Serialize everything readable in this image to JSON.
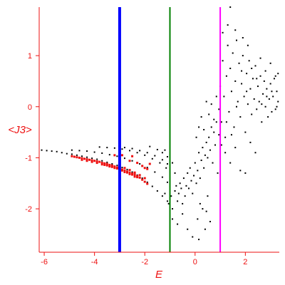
{
  "chart_data": {
    "type": "scatter",
    "xlabel": "E",
    "ylabel": "<J3>",
    "xlim": [
      -6.2,
      3.35
    ],
    "ylim": [
      -2.85,
      1.95
    ],
    "x_ticks": [
      -6,
      -4,
      -2,
      0,
      2
    ],
    "x_tick_labels": [
      "-6",
      "-4",
      "-2",
      "0",
      "2"
    ],
    "y_ticks": [
      1,
      0,
      -1,
      -2
    ],
    "y_tick_labels": [
      "1",
      "0",
      "-1",
      "-2"
    ],
    "grid": false,
    "axis_color": "#ee1111",
    "vertical_lines": [
      {
        "x": -3.0,
        "color": "#0000ff",
        "width": "thick"
      },
      {
        "x": -1.0,
        "color": "#008000",
        "width": "medium"
      },
      {
        "x": 1.0,
        "color": "#ff00ff",
        "width": "medium"
      }
    ],
    "series": [
      {
        "color": "#000000",
        "points": [
          [
            -6.1,
            -0.85
          ],
          [
            -5.9,
            -0.86
          ],
          [
            -5.7,
            -0.87
          ],
          [
            -5.5,
            -0.88
          ],
          [
            -5.3,
            -0.9
          ],
          [
            -5.1,
            -0.92
          ],
          [
            -4.9,
            -0.93
          ],
          [
            -4.7,
            -0.95
          ],
          [
            -4.5,
            -0.97
          ],
          [
            -4.3,
            -0.99
          ],
          [
            -4.1,
            -1.01
          ],
          [
            -3.9,
            -1.03
          ],
          [
            -3.7,
            -1.06
          ],
          [
            -3.5,
            -1.09
          ],
          [
            -3.3,
            -1.12
          ],
          [
            -3.1,
            -1.15
          ],
          [
            -2.9,
            -1.19
          ],
          [
            -2.7,
            -1.23
          ],
          [
            -2.5,
            -1.28
          ],
          [
            -2.3,
            -1.34
          ],
          [
            -2.1,
            -1.4
          ],
          [
            -1.9,
            -1.48
          ],
          [
            -1.7,
            -1.56
          ],
          [
            -1.5,
            -1.65
          ],
          [
            -1.3,
            -1.75
          ],
          [
            -1.1,
            -1.85
          ],
          [
            -4.9,
            -0.85
          ],
          [
            -4.6,
            -0.86
          ],
          [
            -4.3,
            -0.87
          ],
          [
            -4.0,
            -0.89
          ],
          [
            -3.7,
            -0.91
          ],
          [
            -3.4,
            -0.94
          ],
          [
            -3.1,
            -0.97
          ],
          [
            -2.8,
            -1.01
          ],
          [
            -2.5,
            -1.06
          ],
          [
            -2.2,
            -1.12
          ],
          [
            -1.9,
            -1.19
          ],
          [
            -1.6,
            -1.28
          ],
          [
            -1.3,
            -1.38
          ],
          [
            -1.1,
            -1.48
          ],
          [
            -3.8,
            -0.79
          ],
          [
            -3.5,
            -0.8
          ],
          [
            -3.2,
            -0.81
          ],
          [
            -2.9,
            -0.83
          ],
          [
            -2.6,
            -0.86
          ],
          [
            -2.3,
            -0.9
          ],
          [
            -2.0,
            -0.95
          ],
          [
            -1.7,
            -1.02
          ],
          [
            -1.4,
            -1.1
          ],
          [
            -1.15,
            -1.2
          ],
          [
            -2.8,
            -0.8
          ],
          [
            -2.5,
            -0.82
          ],
          [
            -2.2,
            -0.86
          ],
          [
            -1.9,
            -0.9
          ],
          [
            -1.6,
            -0.96
          ],
          [
            -1.3,
            -1.04
          ],
          [
            -1.1,
            -1.12
          ],
          [
            -1.8,
            -0.78
          ],
          [
            -1.5,
            -0.84
          ],
          [
            -1.3,
            -0.9
          ],
          [
            -1.1,
            -0.98
          ],
          [
            -1.2,
            -0.85
          ],
          [
            -0.9,
            -1.1
          ],
          [
            -0.8,
            -1.3
          ],
          [
            -1.2,
            -1.7
          ],
          [
            -1.05,
            -1.9
          ],
          [
            -0.95,
            -1.75
          ],
          [
            -0.9,
            -2.0
          ],
          [
            -0.8,
            -1.65
          ],
          [
            -0.75,
            -1.55
          ],
          [
            -0.7,
            -1.85
          ],
          [
            -0.65,
            -1.7
          ],
          [
            -0.6,
            -1.5
          ],
          [
            -0.55,
            -1.6
          ],
          [
            -0.5,
            -1.9
          ],
          [
            -0.45,
            -1.4
          ],
          [
            -0.4,
            -1.75
          ],
          [
            -0.35,
            -1.55
          ],
          [
            -0.3,
            -1.3
          ],
          [
            -0.25,
            -1.6
          ],
          [
            -0.2,
            -1.2
          ],
          [
            -0.15,
            -1.45
          ],
          [
            -0.1,
            -1.7
          ],
          [
            -0.05,
            -1.35
          ],
          [
            0.0,
            -1.1
          ],
          [
            0.05,
            -1.5
          ],
          [
            0.1,
            -1.25
          ],
          [
            0.15,
            -0.9
          ],
          [
            0.2,
            -1.4
          ],
          [
            0.25,
            -1.05
          ],
          [
            0.3,
            -0.8
          ],
          [
            0.35,
            -1.2
          ],
          [
            0.4,
            -0.95
          ],
          [
            0.45,
            -0.7
          ],
          [
            0.5,
            -1.0
          ],
          [
            0.55,
            -0.6
          ],
          [
            0.6,
            -0.85
          ],
          [
            0.65,
            -0.4
          ],
          [
            0.7,
            -1.1
          ],
          [
            0.75,
            -0.5
          ],
          [
            0.8,
            -0.75
          ],
          [
            0.85,
            -0.3
          ],
          [
            0.9,
            -1.3
          ],
          [
            0.95,
            -0.55
          ],
          [
            -0.7,
            -2.3
          ],
          [
            -0.5,
            -2.1
          ],
          [
            -0.3,
            -2.4
          ],
          [
            -0.1,
            -2.55
          ],
          [
            0.1,
            -2.2
          ],
          [
            0.3,
            -2.0
          ],
          [
            -0.9,
            -2.2
          ],
          [
            -1.0,
            -2.05
          ],
          [
            0.2,
            -1.9
          ],
          [
            0.5,
            -1.75
          ],
          [
            0.45,
            -2.05
          ],
          [
            0.05,
            -0.6
          ],
          [
            0.15,
            -0.4
          ],
          [
            0.25,
            -0.2
          ],
          [
            0.35,
            -0.45
          ],
          [
            0.45,
            0.1
          ],
          [
            0.55,
            -0.15
          ],
          [
            0.65,
            0.05
          ],
          [
            0.75,
            -0.25
          ],
          [
            0.85,
            0.2
          ],
          [
            0.95,
            -0.05
          ],
          [
            1.0,
            0.4
          ],
          [
            1.05,
            -0.3
          ],
          [
            1.1,
            0.9
          ],
          [
            1.15,
            0.2
          ],
          [
            1.2,
            -0.6
          ],
          [
            1.25,
            0.6
          ],
          [
            1.3,
            1.2
          ],
          [
            1.35,
            -0.1
          ],
          [
            1.4,
            0.75
          ],
          [
            1.45,
            0.3
          ],
          [
            1.5,
            1.05
          ],
          [
            1.55,
            -0.4
          ],
          [
            1.6,
            0.5
          ],
          [
            1.65,
            1.3
          ],
          [
            1.7,
            0.1
          ],
          [
            1.75,
            0.85
          ],
          [
            1.8,
            -0.2
          ],
          [
            1.85,
            0.45
          ],
          [
            1.9,
            1.0
          ],
          [
            1.95,
            0.2
          ],
          [
            2.0,
            -0.5
          ],
          [
            2.05,
            0.65
          ],
          [
            2.1,
            0.05
          ],
          [
            2.15,
            0.9
          ],
          [
            2.2,
            0.35
          ],
          [
            2.25,
            -0.15
          ],
          [
            2.3,
            0.55
          ],
          [
            2.35,
            0.15
          ],
          [
            2.4,
            0.8
          ],
          [
            2.45,
            -0.05
          ],
          [
            2.5,
            0.4
          ],
          [
            2.55,
            0.1
          ],
          [
            2.6,
            0.6
          ],
          [
            2.65,
            -0.3
          ],
          [
            2.7,
            0.25
          ],
          [
            2.75,
            0.5
          ],
          [
            2.8,
            0.0
          ],
          [
            2.85,
            0.35
          ],
          [
            2.9,
            -0.2
          ],
          [
            2.95,
            0.15
          ],
          [
            3.0,
            0.45
          ],
          [
            3.05,
            -0.1
          ],
          [
            3.1,
            0.2
          ],
          [
            3.15,
            0.55
          ],
          [
            3.2,
            -0.05
          ],
          [
            3.25,
            0.3
          ],
          [
            3.3,
            0.1
          ],
          [
            1.1,
            1.45
          ],
          [
            1.3,
            1.6
          ],
          [
            1.4,
            1.95
          ],
          [
            1.6,
            1.5
          ],
          [
            1.9,
            1.35
          ],
          [
            2.1,
            1.2
          ],
          [
            1.2,
            -0.9
          ],
          [
            1.4,
            -1.1
          ],
          [
            1.6,
            -0.8
          ],
          [
            1.8,
            -1.25
          ],
          [
            2.0,
            -1.3
          ],
          [
            2.2,
            -0.7
          ],
          [
            2.4,
            -0.9
          ],
          [
            2.6,
            0.95
          ],
          [
            2.8,
            0.7
          ],
          [
            3.0,
            0.85
          ],
          [
            3.2,
            0.6
          ],
          [
            3.3,
            0.65
          ],
          [
            1.05,
            -0.75
          ],
          [
            1.25,
            -0.3
          ],
          [
            1.45,
            -0.55
          ],
          [
            1.65,
            0.0
          ],
          [
            1.85,
            0.7
          ],
          [
            2.05,
            0.3
          ],
          [
            2.25,
            0.75
          ],
          [
            2.45,
            0.55
          ],
          [
            2.65,
            0.05
          ],
          [
            2.85,
            0.2
          ],
          [
            3.05,
            0.3
          ],
          [
            3.25,
            0.0
          ],
          [
            0.6,
            -2.25
          ],
          [
            0.4,
            -2.4
          ],
          [
            0.15,
            -2.6
          ]
        ]
      },
      {
        "color": "#ee1111",
        "points": [
          [
            -4.9,
            -0.97
          ],
          [
            -4.8,
            -0.98
          ],
          [
            -4.7,
            -0.99
          ],
          [
            -4.6,
            -1.0
          ],
          [
            -4.5,
            -1.01
          ],
          [
            -4.4,
            -1.02
          ],
          [
            -4.3,
            -1.03
          ],
          [
            -4.2,
            -1.04
          ],
          [
            -4.1,
            -1.05
          ],
          [
            -4.0,
            -1.06
          ],
          [
            -3.9,
            -1.07
          ],
          [
            -3.8,
            -1.08
          ],
          [
            -3.7,
            -1.1
          ],
          [
            -3.6,
            -1.11
          ],
          [
            -3.5,
            -1.12
          ],
          [
            -3.4,
            -1.14
          ],
          [
            -3.3,
            -1.15
          ],
          [
            -3.2,
            -1.17
          ],
          [
            -3.1,
            -1.19
          ],
          [
            -3.0,
            -1.21
          ],
          [
            -2.9,
            -1.23
          ],
          [
            -2.8,
            -1.25
          ],
          [
            -2.7,
            -1.27
          ],
          [
            -2.6,
            -1.29
          ],
          [
            -2.5,
            -1.31
          ],
          [
            -2.4,
            -1.33
          ],
          [
            -2.3,
            -1.36
          ],
          [
            -2.2,
            -1.39
          ],
          [
            -2.1,
            -1.43
          ],
          [
            -2.0,
            -1.47
          ],
          [
            -1.9,
            -1.51
          ],
          [
            -4.5,
            -1.04
          ],
          [
            -4.3,
            -1.06
          ],
          [
            -4.1,
            -1.08
          ],
          [
            -3.9,
            -1.1
          ],
          [
            -3.7,
            -1.13
          ],
          [
            -3.5,
            -1.15
          ],
          [
            -3.3,
            -1.18
          ],
          [
            -3.1,
            -1.21
          ],
          [
            -2.9,
            -1.25
          ],
          [
            -2.7,
            -1.29
          ],
          [
            -2.5,
            -1.33
          ],
          [
            -2.3,
            -1.38
          ],
          [
            -3.6,
            -1.14
          ],
          [
            -3.4,
            -1.17
          ],
          [
            -3.2,
            -1.2
          ],
          [
            -3.0,
            -1.24
          ],
          [
            -2.8,
            -1.28
          ],
          [
            -2.6,
            -1.32
          ],
          [
            -2.4,
            -1.37
          ],
          [
            -3.0,
            -1.17
          ],
          [
            -2.8,
            -1.2
          ],
          [
            -2.6,
            -1.24
          ],
          [
            -2.4,
            -1.29
          ],
          [
            -2.2,
            -1.34
          ],
          [
            -2.0,
            -1.4
          ],
          [
            -2.6,
            -1.06
          ],
          [
            -2.3,
            -1.1
          ],
          [
            -2.1,
            -1.16
          ],
          [
            -1.9,
            -1.22
          ],
          [
            -2.5,
            -0.97
          ],
          [
            -2.0,
            -1.2
          ],
          [
            -1.8,
            -1.12
          ],
          [
            -3.2,
            -0.95
          ],
          [
            -2.9,
            -0.95
          ]
        ]
      }
    ]
  }
}
